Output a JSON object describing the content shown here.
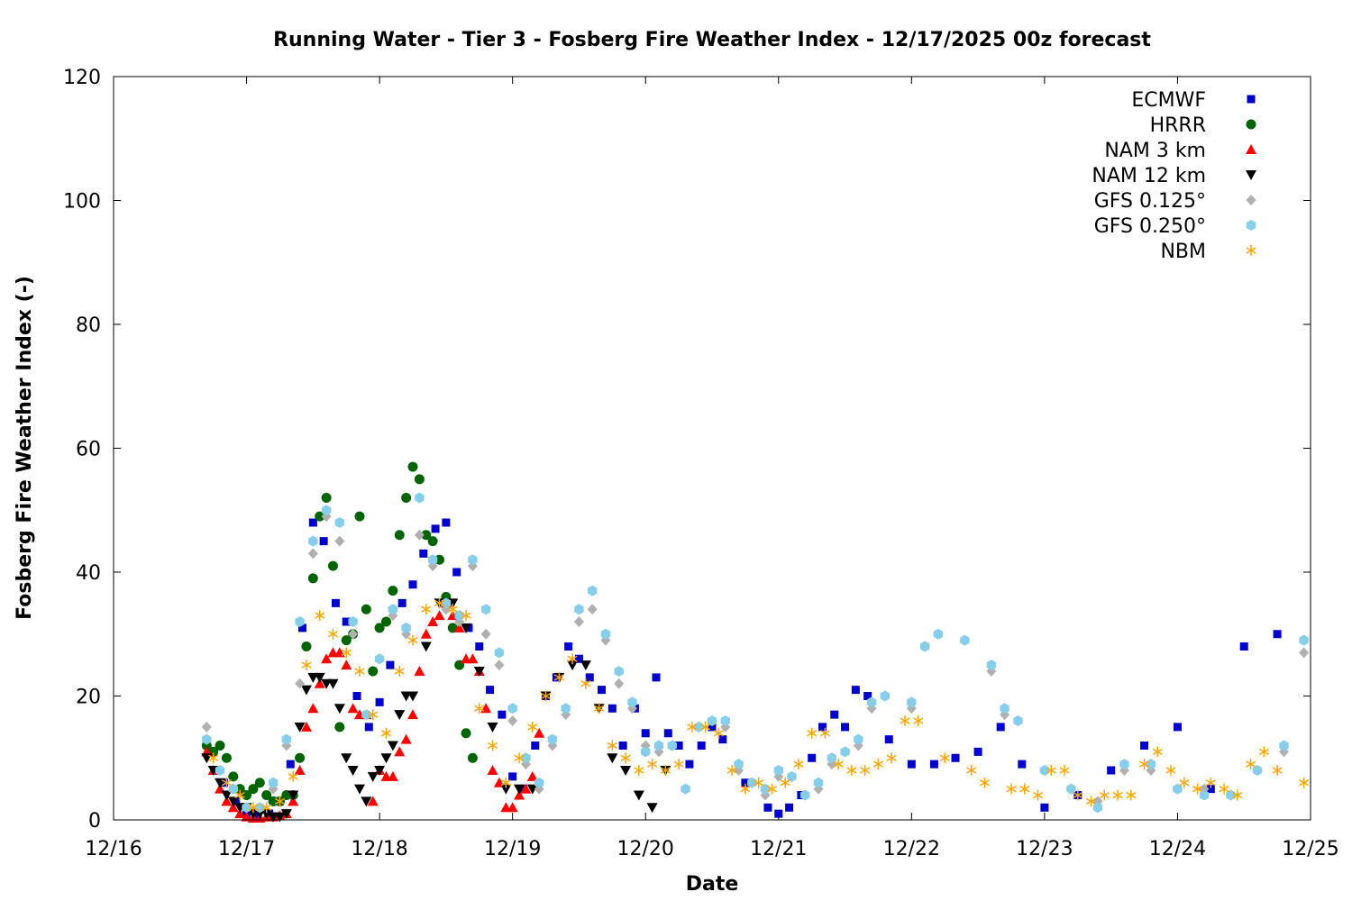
{
  "chart_data": {
    "type": "scatter",
    "title": "Running Water - Tier 3 - Fosberg Fire Weather Index - 12/17/2025 00z forecast",
    "xlabel": "Date",
    "ylabel": "Fosberg Fire Weather Index (-)",
    "x_ticks": [
      "12/16",
      "12/17",
      "12/18",
      "12/19",
      "12/20",
      "12/21",
      "12/22",
      "12/23",
      "12/24",
      "12/25"
    ],
    "y_ticks": [
      "0",
      "20",
      "40",
      "60",
      "80",
      "100",
      "120"
    ],
    "xlim": [
      "12/16",
      "12/25"
    ],
    "ylim": [
      0,
      120
    ],
    "x_unit": "days after 12/16 00z",
    "legend_position": "top-right",
    "grid": false,
    "series": [
      {
        "name": "ECMWF",
        "marker": "square",
        "color": "#0000cc",
        "x": [
          0.75,
          0.83,
          0.92,
          1.0,
          1.08,
          1.17,
          1.25,
          1.33,
          1.42,
          1.5,
          1.58,
          1.67,
          1.75,
          1.83,
          1.92,
          2.0,
          2.08,
          2.17,
          2.25,
          2.33,
          2.42,
          2.5,
          2.58,
          2.67,
          2.75,
          2.83,
          2.92,
          3.0,
          3.08,
          3.17,
          3.25,
          3.33,
          3.42,
          3.5,
          3.58,
          3.67,
          3.75,
          3.83,
          3.92,
          4.0,
          4.08,
          4.17,
          4.25,
          4.33,
          4.42,
          4.5,
          4.58,
          4.75,
          4.92,
          5.0,
          5.08,
          5.17,
          5.25,
          5.33,
          5.42,
          5.5,
          5.58,
          5.67,
          5.83,
          6.0,
          6.17,
          6.33,
          6.5,
          6.67,
          6.83,
          7.0,
          7.25,
          7.5,
          7.75,
          8.0,
          8.25,
          8.5,
          8.75
        ],
        "y": [
          11,
          6,
          3,
          1,
          0.8,
          1,
          3,
          9,
          31,
          48,
          45,
          35,
          32,
          20,
          15,
          19,
          25,
          35,
          38,
          43,
          47,
          48,
          40,
          31,
          28,
          21,
          17,
          7,
          5,
          12,
          20,
          23,
          28,
          26,
          23,
          21,
          18,
          12,
          18,
          14,
          23,
          14,
          12,
          9,
          12,
          15,
          13,
          6,
          2,
          1,
          2,
          4,
          10,
          15,
          17,
          15,
          21,
          20,
          13,
          9,
          9,
          10,
          11,
          15,
          9,
          2,
          4,
          8,
          12,
          15,
          5,
          28,
          30
        ],
        "xlabel_note": "approx"
      },
      {
        "name": "HRRR",
        "marker": "circle",
        "color": "#006400",
        "x": [
          0.7,
          0.75,
          0.8,
          0.85,
          0.9,
          0.95,
          1.0,
          1.05,
          1.1,
          1.15,
          1.2,
          1.25,
          1.3,
          1.35,
          1.4,
          1.45,
          1.5,
          1.55,
          1.6,
          1.65,
          1.7,
          1.75,
          1.8,
          1.85,
          1.9,
          1.95,
          2.0,
          2.05,
          2.1,
          2.15,
          2.2,
          2.25,
          2.3,
          2.35,
          2.4,
          2.45,
          2.5,
          2.55,
          2.6,
          2.65,
          2.7
        ],
        "y": [
          12,
          11,
          12,
          10,
          7,
          5,
          4,
          5,
          6,
          4,
          3,
          3,
          4,
          4,
          10,
          28,
          39,
          49,
          52,
          41,
          15,
          29,
          30,
          49,
          34,
          24,
          31,
          32,
          37,
          46,
          52,
          57,
          55,
          46,
          45,
          42,
          36,
          31,
          25,
          14,
          10
        ]
      },
      {
        "name": "NAM 3 km",
        "marker": "triangle-up",
        "color": "#ff0000",
        "x": [
          0.7,
          0.75,
          0.8,
          0.85,
          0.9,
          0.95,
          1.0,
          1.05,
          1.1,
          1.15,
          1.2,
          1.25,
          1.3,
          1.35,
          1.4,
          1.45,
          1.5,
          1.55,
          1.6,
          1.65,
          1.7,
          1.75,
          1.8,
          1.85,
          1.9,
          1.95,
          2.0,
          2.05,
          2.1,
          2.15,
          2.2,
          2.25,
          2.3,
          2.35,
          2.4,
          2.45,
          2.5,
          2.55,
          2.6,
          2.65,
          2.7,
          2.75,
          2.8,
          2.85,
          2.9,
          2.95,
          3.0,
          3.05,
          3.1,
          3.15,
          3.2
        ],
        "y": [
          11,
          8,
          5,
          3,
          2,
          1,
          0.5,
          0.3,
          0.3,
          0.5,
          0.5,
          0.7,
          1,
          3,
          8,
          15,
          18,
          22,
          26,
          27,
          27,
          25,
          18,
          17,
          17,
          3,
          8,
          7,
          7,
          11,
          13,
          17,
          24,
          30,
          32,
          33,
          35,
          33,
          31,
          26,
          26,
          24,
          18,
          8,
          6,
          2,
          2,
          4,
          5,
          7,
          14
        ]
      },
      {
        "name": "NAM 12 km",
        "marker": "triangle-down",
        "color": "#000000",
        "x": [
          0.7,
          0.75,
          0.8,
          0.85,
          0.9,
          0.95,
          1.0,
          1.05,
          1.1,
          1.15,
          1.2,
          1.25,
          1.3,
          1.35,
          1.4,
          1.45,
          1.5,
          1.55,
          1.6,
          1.65,
          1.7,
          1.75,
          1.8,
          1.85,
          1.9,
          1.95,
          2.0,
          2.05,
          2.1,
          2.15,
          2.2,
          2.25,
          2.35,
          2.45,
          2.55,
          2.65,
          2.75,
          2.85,
          2.95,
          3.05,
          3.15,
          3.25,
          3.35,
          3.45,
          3.55,
          3.65,
          3.75,
          3.85,
          3.95,
          4.05,
          4.15
        ],
        "y": [
          10,
          8,
          6,
          4,
          3,
          2,
          2,
          1,
          1,
          1,
          0.5,
          0.5,
          1,
          4,
          15,
          21,
          23,
          23,
          22,
          22,
          18,
          10,
          8,
          5,
          3,
          7,
          8,
          10,
          12,
          17,
          20,
          20,
          28,
          35,
          35,
          31,
          24,
          15,
          5,
          5,
          5,
          20,
          23,
          25,
          25,
          18,
          10,
          8,
          4,
          2,
          8
        ]
      },
      {
        "name": "GFS 0.125°",
        "marker": "diamond",
        "color": "#b0b0b0",
        "x": [
          0.7,
          0.8,
          0.9,
          1.0,
          1.1,
          1.2,
          1.3,
          1.4,
          1.5,
          1.6,
          1.7,
          1.8,
          1.9,
          2.0,
          2.1,
          2.2,
          2.3,
          2.4,
          2.5,
          2.6,
          2.7,
          2.8,
          2.9,
          3.0,
          3.1,
          3.2,
          3.3,
          3.4,
          3.5,
          3.6,
          3.7,
          3.8,
          3.9,
          4.0,
          4.1,
          4.2,
          4.3,
          4.4,
          4.5,
          4.6,
          4.7,
          4.8,
          4.9,
          5.0,
          5.1,
          5.2,
          5.3,
          5.4,
          5.5,
          5.6,
          5.7,
          5.8,
          6.0,
          6.1,
          6.2,
          6.4,
          6.6,
          6.7,
          6.8,
          7.0,
          7.2,
          7.4,
          7.6,
          7.8,
          8.0,
          8.2,
          8.4,
          8.6,
          8.8,
          8.95
        ],
        "y": [
          15,
          8,
          5,
          2,
          2,
          5,
          12,
          22,
          43,
          49,
          45,
          30,
          17,
          26,
          33,
          30,
          46,
          41,
          34,
          32,
          41,
          30,
          25,
          16,
          9,
          5,
          12,
          17,
          32,
          34,
          29,
          22,
          18,
          12,
          11,
          12,
          5,
          15,
          16,
          15,
          8,
          6,
          4,
          7,
          7,
          4,
          5,
          9,
          11,
          12,
          18,
          20,
          18,
          28,
          30,
          29,
          24,
          17,
          16,
          8,
          5,
          3,
          8,
          8,
          5,
          5,
          4,
          8,
          11,
          27
        ]
      },
      {
        "name": "GFS 0.250°",
        "marker": "hexagon",
        "color": "#87ceeb",
        "x": [
          0.7,
          0.8,
          0.9,
          1.0,
          1.1,
          1.2,
          1.3,
          1.4,
          1.5,
          1.6,
          1.7,
          1.8,
          1.9,
          2.0,
          2.1,
          2.2,
          2.3,
          2.4,
          2.5,
          2.6,
          2.7,
          2.8,
          2.9,
          3.0,
          3.1,
          3.2,
          3.3,
          3.4,
          3.5,
          3.6,
          3.7,
          3.8,
          3.9,
          4.0,
          4.1,
          4.2,
          4.3,
          4.4,
          4.5,
          4.6,
          4.7,
          4.8,
          4.9,
          5.0,
          5.1,
          5.2,
          5.3,
          5.4,
          5.5,
          5.6,
          5.7,
          5.8,
          6.0,
          6.1,
          6.2,
          6.4,
          6.6,
          6.7,
          6.8,
          7.0,
          7.2,
          7.4,
          7.6,
          7.8,
          8.0,
          8.2,
          8.4,
          8.6,
          8.8,
          8.95
        ],
        "y": [
          13,
          8,
          5,
          2,
          2,
          6,
          13,
          32,
          45,
          50,
          48,
          32,
          17,
          26,
          34,
          31,
          52,
          42,
          35,
          33,
          42,
          34,
          27,
          18,
          10,
          6,
          13,
          18,
          34,
          37,
          30,
          24,
          19,
          11,
          12,
          12,
          5,
          15,
          16,
          16,
          9,
          6,
          5,
          8,
          7,
          4,
          6,
          10,
          11,
          13,
          19,
          20,
          19,
          28,
          30,
          29,
          25,
          18,
          16,
          8,
          5,
          2,
          9,
          9,
          5,
          4,
          4,
          8,
          12,
          29
        ]
      },
      {
        "name": "NBM",
        "marker": "asterisk",
        "color": "#ffa500",
        "x": [
          0.75,
          0.85,
          0.95,
          1.05,
          1.15,
          1.25,
          1.35,
          1.45,
          1.55,
          1.65,
          1.75,
          1.85,
          1.95,
          2.05,
          2.15,
          2.25,
          2.35,
          2.45,
          2.55,
          2.65,
          2.75,
          2.85,
          2.95,
          3.05,
          3.15,
          3.25,
          3.35,
          3.45,
          3.55,
          3.65,
          3.75,
          3.85,
          3.95,
          4.05,
          4.15,
          4.25,
          4.35,
          4.45,
          4.55,
          4.65,
          4.75,
          4.85,
          4.95,
          5.05,
          5.15,
          5.25,
          5.35,
          5.45,
          5.55,
          5.65,
          5.75,
          5.85,
          5.95,
          6.05,
          6.25,
          6.45,
          6.55,
          6.75,
          6.85,
          6.95,
          7.05,
          7.15,
          7.25,
          7.35,
          7.45,
          7.55,
          7.65,
          7.75,
          7.85,
          7.95,
          8.05,
          8.15,
          8.25,
          8.35,
          8.45,
          8.55,
          8.65,
          8.75,
          8.95
        ],
        "y": [
          10,
          6,
          4,
          2,
          2,
          3,
          7,
          25,
          33,
          30,
          27,
          24,
          17,
          14,
          24,
          29,
          34,
          35,
          34,
          33,
          18,
          12,
          6,
          10,
          15,
          20,
          23,
          26,
          22,
          18,
          12,
          10,
          8,
          9,
          8,
          9,
          15,
          15,
          14,
          8,
          5,
          6,
          5,
          6,
          9,
          14,
          14,
          9,
          8,
          8,
          9,
          10,
          16,
          16,
          10,
          8,
          6,
          5,
          5,
          4,
          8,
          8,
          4,
          3,
          4,
          4,
          4,
          9,
          11,
          8,
          6,
          5,
          6,
          5,
          4,
          9,
          11,
          8,
          6
        ]
      }
    ]
  }
}
